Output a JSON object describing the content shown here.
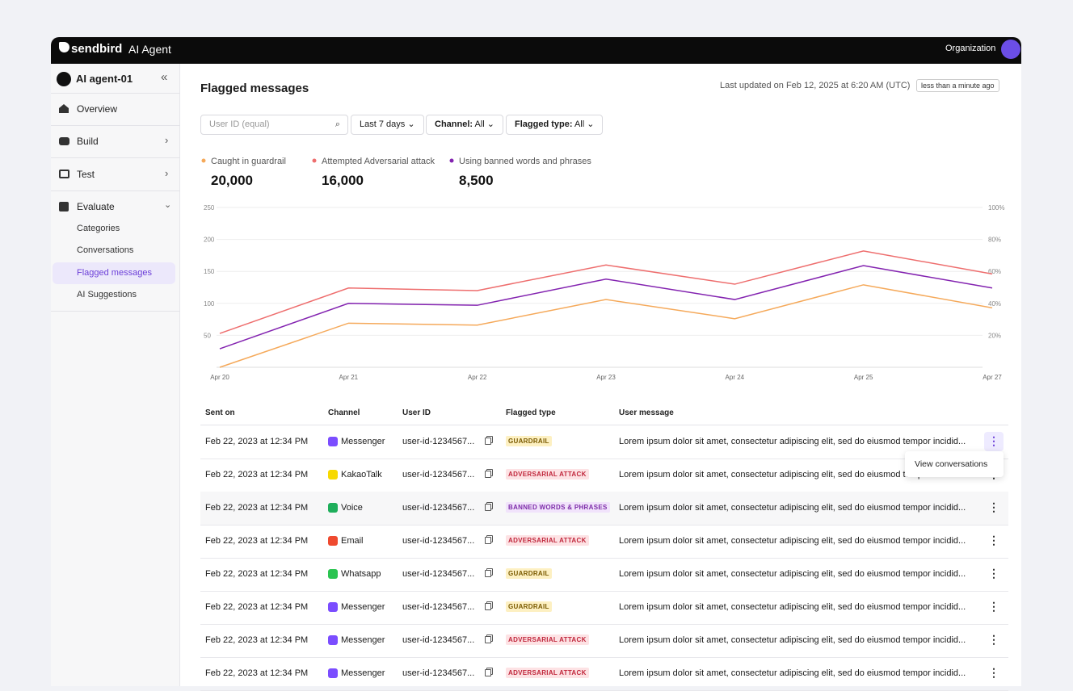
{
  "topbar": {
    "brand": "sendbird",
    "product": "AI Agent",
    "org": "Organization"
  },
  "sidebar": {
    "agent": "AI agent-01",
    "nav": [
      "Overview",
      "Build",
      "Test",
      "Evaluate"
    ],
    "sub": [
      "Categories",
      "Conversations",
      "Flagged messages",
      "AI Suggestions"
    ]
  },
  "header": {
    "title": "Flagged messages",
    "last_updated": "Last updated on Feb 12, 2025 at 6:20 AM (UTC)",
    "badge": "less than a minute ago"
  },
  "filters": {
    "search_placeholder": "User ID (equal)",
    "period": "Last 7 days",
    "channel_label": "Channel:",
    "channel_value": "All",
    "type_label": "Flagged type:",
    "type_value": "All"
  },
  "chart_data": {
    "type": "line",
    "categories": [
      "Apr 20",
      "Apr 21",
      "Apr 22",
      "Apr 23",
      "Apr 24",
      "Apr 25",
      "Apr 27"
    ],
    "series": [
      {
        "name": "Caught in guardrail",
        "color": "#f5a95a",
        "total": "20,000",
        "values": [
          0,
          69,
          66,
          106,
          76,
          129,
          93
        ]
      },
      {
        "name": "Attempted Adversarial attack",
        "color": "#ee6e6e",
        "total": "16,000",
        "values": [
          53,
          124,
          120,
          160,
          130,
          182,
          146
        ]
      },
      {
        "name": "Using banned words and phrases",
        "color": "#8323b0",
        "total": "8,500",
        "values": [
          29,
          100,
          97,
          138,
          106,
          159,
          124
        ]
      }
    ],
    "ylim": [
      0,
      250
    ],
    "yticks": [
      50,
      100,
      150,
      200,
      250
    ],
    "y2lim": [
      0,
      100
    ],
    "y2ticks": [
      {
        "value": 20,
        "label": "20%"
      },
      {
        "value": 40,
        "label": "40%"
      },
      {
        "value": 60,
        "label": "60%"
      },
      {
        "value": 80,
        "label": "80%"
      },
      {
        "value": 100,
        "label": "100%"
      }
    ],
    "grid": true
  },
  "table": {
    "columns": [
      "Sent on",
      "Channel",
      "User ID",
      "Flagged type",
      "User message"
    ],
    "rows": [
      {
        "sent_on": "Feb 22, 2023 at 12:34 PM",
        "channel": "Messenger",
        "icon_color": "#7b4dff",
        "user_id": "user-id-1234567...",
        "flagged_type": "GUARDRAIL",
        "tag_bg": "#fdf0c2",
        "tag_fg": "#7a5a00",
        "message": "Lorem ipsum dolor sit amet, consectetur adipiscing elit, sed do eiusmod tempor incidid..."
      },
      {
        "sent_on": "Feb 22, 2023 at 12:34 PM",
        "channel": "KakaoTalk",
        "icon_color": "#f7d900",
        "user_id": "user-id-1234567...",
        "flagged_type": "ADVERSARIAL ATTACK",
        "tag_bg": "#fde2e4",
        "tag_fg": "#c0263b",
        "message": "Lorem ipsum dolor sit amet, consectetur adipiscing elit, sed do eiusmod tempor incidid..."
      },
      {
        "sent_on": "Feb 22, 2023 at 12:34 PM",
        "channel": "Voice",
        "icon_color": "#1fae5b",
        "user_id": "user-id-1234567...",
        "flagged_type": "BANNED WORDS & PHRASES",
        "tag_bg": "#f1e3fb",
        "tag_fg": "#7d2ca8",
        "message": "Lorem ipsum dolor sit amet, consectetur adipiscing elit, sed do eiusmod tempor incidid..."
      },
      {
        "sent_on": "Feb 22, 2023 at 12:34 PM",
        "channel": "Email",
        "icon_color": "#ef4a2f",
        "user_id": "user-id-1234567...",
        "flagged_type": "ADVERSARIAL ATTACK",
        "tag_bg": "#fde2e4",
        "tag_fg": "#c0263b",
        "message": "Lorem ipsum dolor sit amet, consectetur adipiscing elit, sed do eiusmod tempor incidid..."
      },
      {
        "sent_on": "Feb 22, 2023 at 12:34 PM",
        "channel": "Whatsapp",
        "icon_color": "#2bc451",
        "user_id": "user-id-1234567...",
        "flagged_type": "GUARDRAIL",
        "tag_bg": "#fdf0c2",
        "tag_fg": "#7a5a00",
        "message": "Lorem ipsum dolor sit amet, consectetur adipiscing elit, sed do eiusmod tempor incidid..."
      },
      {
        "sent_on": "Feb 22, 2023 at 12:34 PM",
        "channel": "Messenger",
        "icon_color": "#7b4dff",
        "user_id": "user-id-1234567...",
        "flagged_type": "GUARDRAIL",
        "tag_bg": "#fdf0c2",
        "tag_fg": "#7a5a00",
        "message": "Lorem ipsum dolor sit amet, consectetur adipiscing elit, sed do eiusmod tempor incidid..."
      },
      {
        "sent_on": "Feb 22, 2023 at 12:34 PM",
        "channel": "Messenger",
        "icon_color": "#7b4dff",
        "user_id": "user-id-1234567...",
        "flagged_type": "ADVERSARIAL ATTACK",
        "tag_bg": "#fde2e4",
        "tag_fg": "#c0263b",
        "message": "Lorem ipsum dolor sit amet, consectetur adipiscing elit, sed do eiusmod tempor incidid..."
      },
      {
        "sent_on": "Feb 22, 2023 at 12:34 PM",
        "channel": "Messenger",
        "icon_color": "#7b4dff",
        "user_id": "user-id-1234567...",
        "flagged_type": "ADVERSARIAL ATTACK",
        "tag_bg": "#fde2e4",
        "tag_fg": "#c0263b",
        "message": "Lorem ipsum dolor sit amet, consectetur adipiscing elit, sed do eiusmod tempor incidid..."
      }
    ]
  },
  "menu": {
    "item": "View conversations"
  }
}
